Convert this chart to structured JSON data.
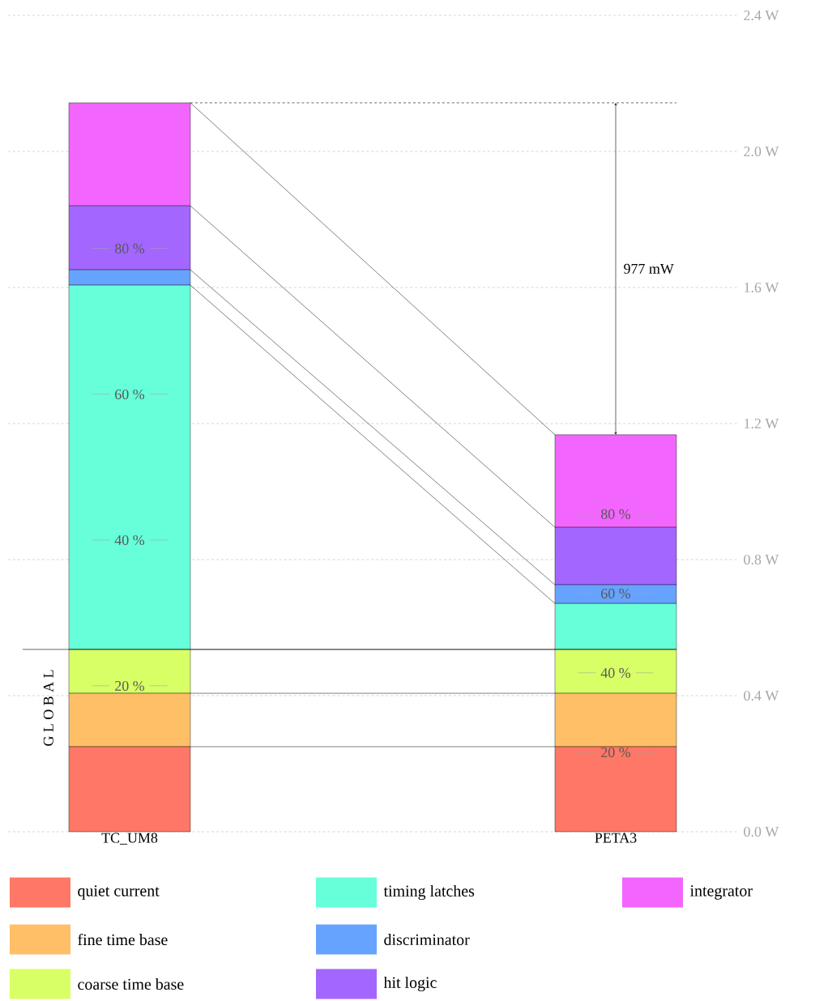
{
  "chart_data": {
    "type": "bar",
    "stacked": true,
    "categories": [
      "TC_UM8",
      "PETA3"
    ],
    "series": [
      {
        "name": "quiet current",
        "color": "#ff7766",
        "values": [
          0.25,
          0.25
        ]
      },
      {
        "name": "fine time base",
        "color": "#ffbf66",
        "values": [
          0.157,
          0.157
        ]
      },
      {
        "name": "coarse time base",
        "color": "#d9ff66",
        "values": [
          0.129,
          0.129
        ]
      },
      {
        "name": "timing latches",
        "color": "#66ffd9",
        "values": [
          1.071,
          0.135
        ]
      },
      {
        "name": "discriminator",
        "color": "#66a3ff",
        "values": [
          0.045,
          0.055
        ]
      },
      {
        "name": "hit logic",
        "color": "#a366ff",
        "values": [
          0.188,
          0.169
        ]
      },
      {
        "name": "integrator",
        "color": "#f266ff",
        "values": [
          0.303,
          0.272
        ]
      }
    ],
    "ylim": [
      0,
      2.4
    ],
    "yticks": [
      {
        "value": 0,
        "label": "0.0 W"
      },
      {
        "value": 0.4,
        "label": "0.4 W"
      },
      {
        "value": 0.8,
        "label": "0.8 W"
      },
      {
        "value": 1.2,
        "label": "1.2 W"
      },
      {
        "value": 1.6,
        "label": "1.6 W"
      },
      {
        "value": 2.0,
        "label": "2.0 W"
      },
      {
        "value": 2.4,
        "label": "2.4 W"
      }
    ],
    "grid": "y",
    "legend": "bottom",
    "ref_lines": [
      {
        "axis": "y",
        "value": 0.536,
        "label": "G L O B A L"
      },
      {
        "axis": "y",
        "value": 2.143,
        "line_style": "dashed"
      }
    ],
    "annotations": [
      "20 %",
      "40 %",
      "60 %",
      "80 %",
      "20 %",
      "40 %",
      "60 %",
      "80 %",
      "977 mW"
    ]
  }
}
